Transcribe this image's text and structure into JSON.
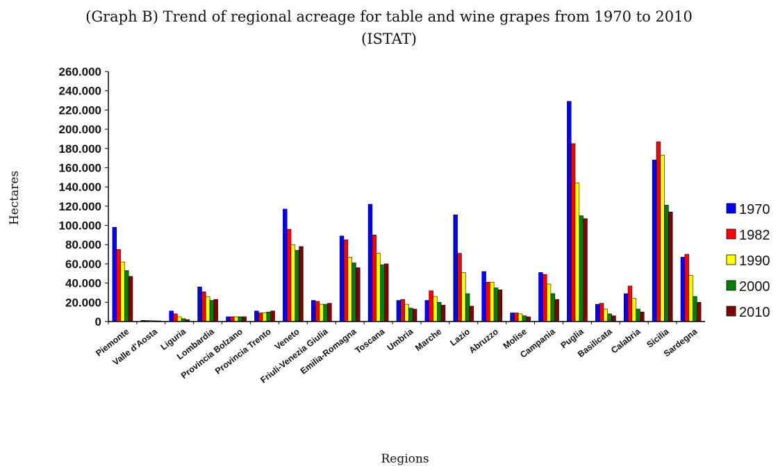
{
  "chart_data": {
    "type": "bar",
    "title": "(Graph B) Trend of regional acreage for table and wine grapes from 1970 to 2010",
    "subtitle": "(ISTAT)",
    "xlabel": "Regions",
    "ylabel": "Hectares",
    "ylim": [
      0,
      260000
    ],
    "yticks": [
      "0",
      "20.000",
      "40.000",
      "60.000",
      "80.000",
      "100.000",
      "120.000",
      "140.000",
      "160.000",
      "180.000",
      "200.000",
      "220.000",
      "240.000",
      "260.000"
    ],
    "grid": false,
    "legend_position": "right",
    "categories": [
      "Piemonte",
      "Valle d'Aosta",
      "Liguria",
      "Lombardia",
      "Provincia Bolzano",
      "Provincia Trento",
      "Veneto",
      "Friuli-Venezia Giulia",
      "Emilia-Romagna",
      "Toscana",
      "Umbria",
      "Marche",
      "Lazio",
      "Abruzzo",
      "Molise",
      "Campania",
      "Puglia",
      "Basilicata",
      "Calabria",
      "Sicilia",
      "Sardegna"
    ],
    "series": [
      {
        "name": "1970",
        "color": "#0000ff",
        "values": [
          98000,
          1200,
          11000,
          36000,
          5000,
          11000,
          117000,
          22000,
          89000,
          122000,
          22000,
          22000,
          111000,
          52000,
          9000,
          51000,
          229000,
          18000,
          29000,
          168000,
          67000
        ]
      },
      {
        "name": "1982",
        "color": "#ff0000",
        "values": [
          75000,
          1100,
          8000,
          31000,
          5000,
          9000,
          96000,
          21000,
          85000,
          90000,
          23000,
          32000,
          71000,
          41000,
          9000,
          49000,
          185000,
          19000,
          37000,
          187000,
          70000
        ]
      },
      {
        "name": "1990",
        "color": "#ffff00",
        "values": [
          62000,
          1000,
          5000,
          26000,
          5000,
          9000,
          80000,
          18000,
          67000,
          71000,
          18000,
          26000,
          51000,
          41000,
          8000,
          39000,
          144000,
          13000,
          24000,
          173000,
          48000
        ]
      },
      {
        "name": "2000",
        "color": "#008000",
        "values": [
          53000,
          800,
          3000,
          22000,
          5000,
          10000,
          74000,
          18000,
          61000,
          59000,
          14000,
          20000,
          29000,
          35000,
          6000,
          29000,
          110000,
          8000,
          13000,
          121000,
          26000
        ]
      },
      {
        "name": "2010",
        "color": "#800000",
        "values": [
          47000,
          700,
          2000,
          23000,
          5000,
          11000,
          78000,
          19000,
          56000,
          60000,
          13000,
          17000,
          16000,
          33000,
          5000,
          23000,
          107000,
          6000,
          10000,
          114000,
          20000
        ]
      }
    ]
  }
}
